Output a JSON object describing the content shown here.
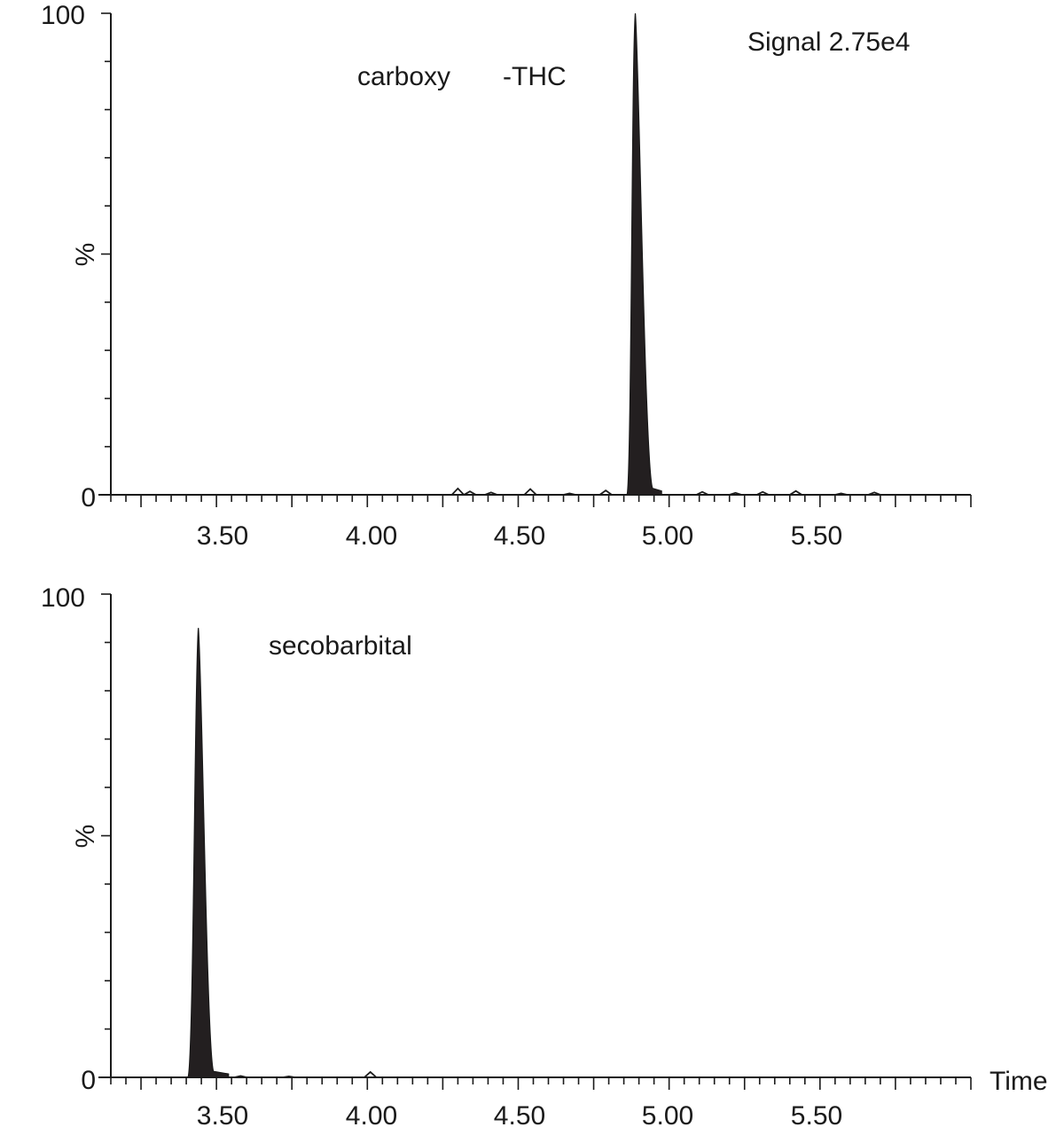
{
  "chart_data": [
    {
      "type": "line",
      "panel": "top",
      "title": "",
      "xlabel": "",
      "ylabel": "%",
      "xlim": [
        3.15,
        6.0
      ],
      "ylim": [
        0,
        100
      ],
      "x_ticks": [
        "3.50",
        "4.00",
        "4.50",
        "5.00",
        "5.50"
      ],
      "y_ticks": [
        "0",
        "100"
      ],
      "annotations": {
        "compound_a": "carboxy",
        "compound_b": "-THC",
        "signal": "Signal 2.75e4"
      },
      "baseline_range": [
        4.22,
        6.0
      ],
      "noise": [
        {
          "x": 4.3,
          "y": 1.3
        },
        {
          "x": 4.34,
          "y": 0.7
        },
        {
          "x": 4.41,
          "y": 0.5
        },
        {
          "x": 4.54,
          "y": 1.2
        },
        {
          "x": 4.67,
          "y": 0.3
        },
        {
          "x": 4.79,
          "y": 0.9
        },
        {
          "x": 4.92,
          "y": 0.8
        },
        {
          "x": 5.11,
          "y": 0.6
        },
        {
          "x": 5.22,
          "y": 0.4
        },
        {
          "x": 5.31,
          "y": 0.6
        },
        {
          "x": 5.42,
          "y": 0.8
        },
        {
          "x": 5.57,
          "y": 0.3
        },
        {
          "x": 5.68,
          "y": 0.5
        }
      ],
      "peak": {
        "apex_x": 4.888,
        "apex_y": 100,
        "start_x": 4.86,
        "end_x": 4.945,
        "tail_x": 4.975,
        "tail_y": 0.8
      },
      "grid": false
    },
    {
      "type": "line",
      "panel": "bottom",
      "title": "",
      "xlabel": "Time",
      "ylabel": "%",
      "xlim": [
        3.15,
        6.0
      ],
      "ylim": [
        0,
        100
      ],
      "x_ticks": [
        "3.50",
        "4.00",
        "4.50",
        "5.00",
        "5.50"
      ],
      "y_ticks": [
        "0",
        "100"
      ],
      "annotations": {
        "compound": "secobarbital"
      },
      "baseline_range": [
        3.15,
        4.15
      ],
      "noise": [
        {
          "x": 3.58,
          "y": 0.3
        },
        {
          "x": 3.74,
          "y": 0.2
        },
        {
          "x": 4.01,
          "y": 1.1
        }
      ],
      "peak": {
        "apex_x": 3.44,
        "apex_y": 93,
        "start_x": 3.405,
        "end_x": 3.49,
        "tail_x": 3.54,
        "tail_y": 0.7
      },
      "grid": false
    }
  ]
}
